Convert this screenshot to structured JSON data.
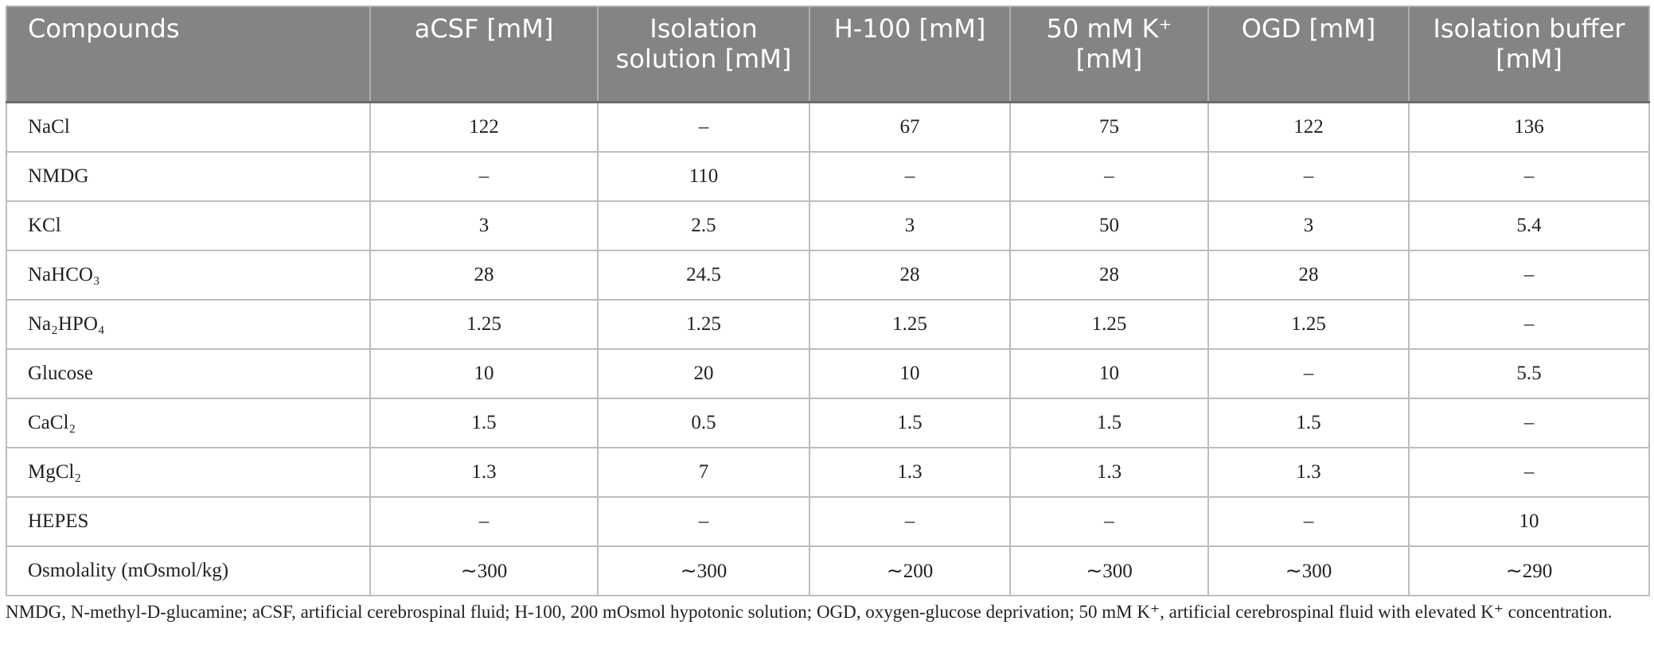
{
  "table": {
    "header": [
      "Compounds",
      "aCSF [mM]",
      "Isolation solution [mM]",
      "H-100 [mM]",
      "50 mM K⁺ [mM]",
      "OGD [mM]",
      "Isolation buffer [mM]"
    ],
    "rows": [
      [
        "NaCl",
        "122",
        "–",
        "67",
        "75",
        "122",
        "136"
      ],
      [
        "NMDG",
        "–",
        "110",
        "–",
        "–",
        "–",
        "–"
      ],
      [
        "KCl",
        "3",
        "2.5",
        "3",
        "50",
        "3",
        "5.4"
      ],
      [
        "NaHCO₃",
        "28",
        "24.5",
        "28",
        "28",
        "28",
        "–"
      ],
      [
        "Na₂HPO₄",
        "1.25",
        "1.25",
        "1.25",
        "1.25",
        "1.25",
        "–"
      ],
      [
        "Glucose",
        "10",
        "20",
        "10",
        "10",
        "–",
        "5.5"
      ],
      [
        "CaCl₂",
        "1.5",
        "0.5",
        "1.5",
        "1.5",
        "1.5",
        "–"
      ],
      [
        "MgCl₂",
        "1.3",
        "7",
        "1.3",
        "1.3",
        "1.3",
        "–"
      ],
      [
        "HEPES",
        "–",
        "–",
        "–",
        "–",
        "–",
        "10"
      ],
      [
        "Osmolality (mOsmol/kg)",
        "∼300",
        "∼300",
        "∼200",
        "∼300",
        "∼300",
        "∼290"
      ]
    ]
  },
  "footnote": "NMDG, N-methyl-D-glucamine; aCSF, artificial cerebrospinal fluid; H-100, 200 mOsmol hypotonic solution; OGD, oxygen-glucose deprivation; 50 mM K⁺, artificial cerebrospinal fluid with elevated K⁺ concentration."
}
